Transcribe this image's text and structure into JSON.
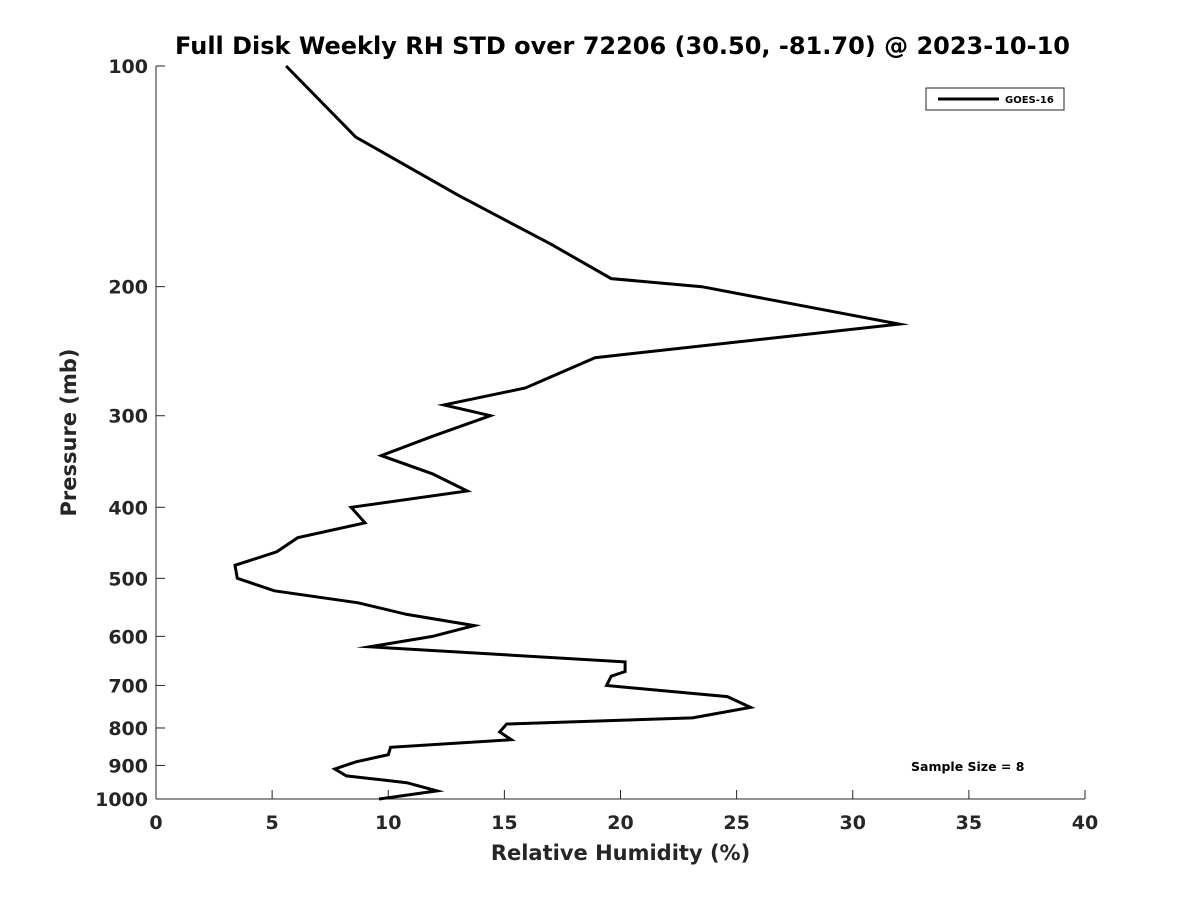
{
  "chart_data": {
    "type": "line",
    "title": "Full Disk Weekly RH STD over 72206 (30.50, -81.70) @ 2023-10-10",
    "xlabel": "Relative Humidity (%)",
    "ylabel": "Pressure (mb)",
    "xlim": [
      0,
      40
    ],
    "ylim": [
      100,
      1000
    ],
    "y_scale": "log",
    "y_reversed": true,
    "grid": false,
    "legend_position": "top-right",
    "xticks": [
      0,
      5,
      10,
      15,
      20,
      25,
      30,
      35,
      40
    ],
    "yticks": [
      100,
      200,
      300,
      400,
      500,
      600,
      700,
      800,
      900,
      1000
    ],
    "annotation": "Sample Size = 8",
    "series": [
      {
        "name": "GOES-16",
        "color": "#000000",
        "points": [
          [
            5.6,
            100
          ],
          [
            8.6,
            125
          ],
          [
            13.0,
            150
          ],
          [
            17.0,
            175
          ],
          [
            19.6,
            195
          ],
          [
            23.5,
            200
          ],
          [
            32.0,
            225
          ],
          [
            18.9,
            250
          ],
          [
            15.9,
            275
          ],
          [
            12.4,
            290
          ],
          [
            14.4,
            300
          ],
          [
            11.9,
            320
          ],
          [
            9.7,
            340
          ],
          [
            11.9,
            360
          ],
          [
            13.4,
            380
          ],
          [
            8.4,
            400
          ],
          [
            9.0,
            420
          ],
          [
            6.1,
            440
          ],
          [
            5.2,
            460
          ],
          [
            3.4,
            480
          ],
          [
            3.5,
            500
          ],
          [
            5.1,
            520
          ],
          [
            8.7,
            540
          ],
          [
            10.8,
            560
          ],
          [
            13.7,
            580
          ],
          [
            11.9,
            600
          ],
          [
            9.2,
            620
          ],
          [
            20.2,
            650
          ],
          [
            20.2,
            670
          ],
          [
            19.6,
            680
          ],
          [
            19.4,
            700
          ],
          [
            24.6,
            725
          ],
          [
            25.6,
            750
          ],
          [
            23.1,
            775
          ],
          [
            15.1,
            790
          ],
          [
            14.8,
            810
          ],
          [
            15.3,
            830
          ],
          [
            10.1,
            850
          ],
          [
            10.0,
            870
          ],
          [
            8.6,
            890
          ],
          [
            7.7,
            910
          ],
          [
            8.2,
            930
          ],
          [
            10.8,
            950
          ],
          [
            12.1,
            975
          ],
          [
            9.6,
            1000
          ]
        ]
      }
    ]
  }
}
